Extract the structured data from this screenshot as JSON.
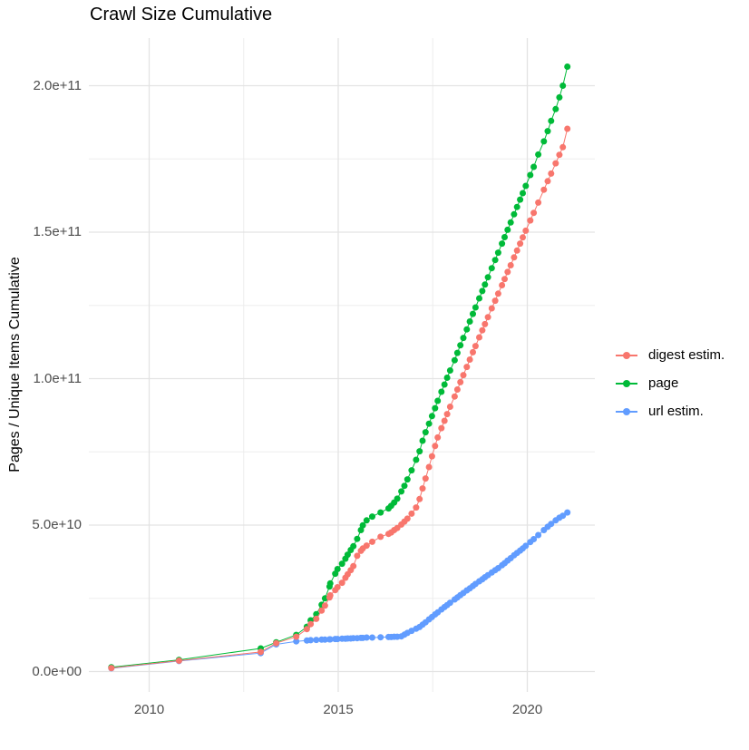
{
  "title": "Crawl Size Cumulative",
  "axes": {
    "y_title": "Pages / Unique Items Cumulative",
    "x_ticks": [
      {
        "label": "2010",
        "value": 2010
      },
      {
        "label": "2015",
        "value": 2015
      },
      {
        "label": "2020",
        "value": 2020
      }
    ],
    "y_ticks": [
      {
        "label": "0.0e+00",
        "value_e9": 0
      },
      {
        "label": "5.0e+10",
        "value_e9": 50
      },
      {
        "label": "1.0e+11",
        "value_e9": 100
      },
      {
        "label": "1.5e+11",
        "value_e9": 150
      },
      {
        "label": "2.0e+11",
        "value_e9": 200
      }
    ],
    "x_minor": [
      2012.5,
      2017.5
    ],
    "y_minor_e9": [
      25,
      75,
      125,
      175
    ]
  },
  "legend": [
    {
      "label": "digest estim.",
      "color": "#F8766D"
    },
    {
      "label": "page",
      "color": "#00BA38"
    },
    {
      "label": "url estim.",
      "color": "#619CFF"
    }
  ],
  "colors": {
    "digest": "#F8766D",
    "page": "#00BA38",
    "url": "#619CFF",
    "grid_major": "#e3e3e3",
    "grid_minor": "#ededed",
    "tick_text": "#4d4d4d",
    "title_text": "#000000"
  },
  "chart_data": {
    "type": "line",
    "marker": "point",
    "title": "Crawl Size Cumulative",
    "xlabel": "",
    "ylabel": "Pages / Unique Items Cumulative",
    "x_unit": "year",
    "value_unit": "items, stored as billions (1e9)",
    "xlim": [
      2008.35,
      2021.75
    ],
    "ylim_e9": [
      -9,
      214
    ],
    "grid": true,
    "legend_position": "right",
    "draw_order": [
      "page",
      "url estim.",
      "digest estim."
    ],
    "series": [
      {
        "name": "digest estim.",
        "color": "#F8766D",
        "points": [
          [
            2009.0,
            1.2
          ],
          [
            2010.79,
            3.7
          ],
          [
            2012.95,
            6.7
          ],
          [
            2013.36,
            9.7
          ],
          [
            2013.89,
            11.9
          ],
          [
            2014.17,
            14.5
          ],
          [
            2014.27,
            16.2
          ],
          [
            2014.42,
            18.0
          ],
          [
            2014.56,
            20.8
          ],
          [
            2014.65,
            22.5
          ],
          [
            2014.77,
            25.3
          ],
          [
            2014.79,
            26.0
          ],
          [
            2014.92,
            27.8
          ],
          [
            2014.98,
            28.8
          ],
          [
            2015.1,
            30.3
          ],
          [
            2015.19,
            32.0
          ],
          [
            2015.25,
            33.2
          ],
          [
            2015.33,
            34.6
          ],
          [
            2015.4,
            36.0
          ],
          [
            2015.5,
            39.5
          ],
          [
            2015.6,
            41.2
          ],
          [
            2015.65,
            42.0
          ],
          [
            2015.75,
            43.0
          ],
          [
            2015.9,
            44.3
          ],
          [
            2016.12,
            46.0
          ],
          [
            2016.33,
            47.0
          ],
          [
            2016.4,
            47.5
          ],
          [
            2016.48,
            48.3
          ],
          [
            2016.56,
            49.0
          ],
          [
            2016.67,
            50.2
          ],
          [
            2016.75,
            51.2
          ],
          [
            2016.83,
            52.2
          ],
          [
            2016.94,
            53.9
          ],
          [
            2017.06,
            56.0
          ],
          [
            2017.15,
            58.9
          ],
          [
            2017.23,
            62.5
          ],
          [
            2017.31,
            65.9
          ],
          [
            2017.4,
            69.8
          ],
          [
            2017.48,
            73.5
          ],
          [
            2017.56,
            77.0
          ],
          [
            2017.63,
            79.9
          ],
          [
            2017.73,
            83.1
          ],
          [
            2017.81,
            85.6
          ],
          [
            2017.88,
            87.9
          ],
          [
            2017.96,
            90.4
          ],
          [
            2018.08,
            93.9
          ],
          [
            2018.15,
            96.3
          ],
          [
            2018.23,
            98.8
          ],
          [
            2018.31,
            101.2
          ],
          [
            2018.4,
            104.0
          ],
          [
            2018.48,
            106.5
          ],
          [
            2018.56,
            109.0
          ],
          [
            2018.63,
            111.1
          ],
          [
            2018.73,
            114.1
          ],
          [
            2018.81,
            116.5
          ],
          [
            2018.88,
            118.6
          ],
          [
            2018.96,
            121.0
          ],
          [
            2019.06,
            124.0
          ],
          [
            2019.15,
            126.6
          ],
          [
            2019.23,
            129.0
          ],
          [
            2019.33,
            131.9
          ],
          [
            2019.4,
            134.0
          ],
          [
            2019.48,
            136.4
          ],
          [
            2019.56,
            138.7
          ],
          [
            2019.65,
            141.4
          ],
          [
            2019.73,
            143.7
          ],
          [
            2019.81,
            146.1
          ],
          [
            2019.88,
            148.2
          ],
          [
            2019.96,
            150.5
          ],
          [
            2020.08,
            154.0
          ],
          [
            2020.17,
            156.6
          ],
          [
            2020.29,
            160.1
          ],
          [
            2020.44,
            164.5
          ],
          [
            2020.54,
            167.4
          ],
          [
            2020.63,
            170.0
          ],
          [
            2020.75,
            173.5
          ],
          [
            2020.85,
            176.4
          ],
          [
            2020.94,
            179.0
          ],
          [
            2021.06,
            185.3
          ]
        ]
      },
      {
        "name": "page",
        "color": "#00BA38",
        "points": [
          [
            2009.0,
            1.5
          ],
          [
            2010.79,
            4.0
          ],
          [
            2012.95,
            7.9
          ],
          [
            2013.36,
            10.0
          ],
          [
            2013.89,
            12.5
          ],
          [
            2014.17,
            15.3
          ],
          [
            2014.27,
            17.5
          ],
          [
            2014.42,
            19.6
          ],
          [
            2014.56,
            22.8
          ],
          [
            2014.65,
            25.0
          ],
          [
            2014.77,
            29.0
          ],
          [
            2014.79,
            30.1
          ],
          [
            2014.92,
            33.4
          ],
          [
            2014.98,
            35.0
          ],
          [
            2015.1,
            36.8
          ],
          [
            2015.19,
            38.5
          ],
          [
            2015.25,
            39.9
          ],
          [
            2015.33,
            41.5
          ],
          [
            2015.4,
            42.8
          ],
          [
            2015.5,
            45.3
          ],
          [
            2015.6,
            48.3
          ],
          [
            2015.65,
            49.9
          ],
          [
            2015.75,
            51.6
          ],
          [
            2015.9,
            52.9
          ],
          [
            2016.12,
            54.3
          ],
          [
            2016.33,
            55.7
          ],
          [
            2016.4,
            56.6
          ],
          [
            2016.48,
            57.7
          ],
          [
            2016.56,
            59.0
          ],
          [
            2016.67,
            61.5
          ],
          [
            2016.75,
            63.4
          ],
          [
            2016.83,
            65.6
          ],
          [
            2016.94,
            68.7
          ],
          [
            2017.06,
            72.3
          ],
          [
            2017.15,
            75.2
          ],
          [
            2017.23,
            78.8
          ],
          [
            2017.31,
            81.7
          ],
          [
            2017.4,
            84.6
          ],
          [
            2017.48,
            87.2
          ],
          [
            2017.56,
            89.9
          ],
          [
            2017.63,
            92.4
          ],
          [
            2017.73,
            95.5
          ],
          [
            2017.81,
            98.0
          ],
          [
            2017.88,
            100.3
          ],
          [
            2017.96,
            102.8
          ],
          [
            2018.08,
            106.3
          ],
          [
            2018.15,
            108.8
          ],
          [
            2018.23,
            111.4
          ],
          [
            2018.31,
            113.9
          ],
          [
            2018.4,
            116.8
          ],
          [
            2018.48,
            119.5
          ],
          [
            2018.56,
            122.1
          ],
          [
            2018.63,
            124.3
          ],
          [
            2018.73,
            127.4
          ],
          [
            2018.81,
            129.9
          ],
          [
            2018.88,
            132.1
          ],
          [
            2018.96,
            134.6
          ],
          [
            2019.06,
            137.7
          ],
          [
            2019.15,
            140.5
          ],
          [
            2019.23,
            143.0
          ],
          [
            2019.33,
            146.1
          ],
          [
            2019.4,
            148.3
          ],
          [
            2019.48,
            150.8
          ],
          [
            2019.56,
            153.3
          ],
          [
            2019.65,
            156.1
          ],
          [
            2019.73,
            158.6
          ],
          [
            2019.81,
            161.1
          ],
          [
            2019.88,
            163.3
          ],
          [
            2019.96,
            165.8
          ],
          [
            2020.08,
            169.5
          ],
          [
            2020.17,
            172.3
          ],
          [
            2020.29,
            176.5
          ],
          [
            2020.44,
            181.0
          ],
          [
            2020.54,
            184.5
          ],
          [
            2020.63,
            188.0
          ],
          [
            2020.75,
            192.0
          ],
          [
            2020.85,
            196.0
          ],
          [
            2020.94,
            200.0
          ],
          [
            2021.06,
            206.5
          ]
        ]
      },
      {
        "name": "url estim.",
        "color": "#619CFF",
        "points": [
          [
            2009.0,
            1.1
          ],
          [
            2010.79,
            3.6
          ],
          [
            2012.95,
            6.3
          ],
          [
            2013.36,
            9.3
          ],
          [
            2013.89,
            10.3
          ],
          [
            2014.17,
            10.6
          ],
          [
            2014.27,
            10.7
          ],
          [
            2014.42,
            10.8
          ],
          [
            2014.56,
            10.9
          ],
          [
            2014.65,
            10.9
          ],
          [
            2014.77,
            11.0
          ],
          [
            2014.79,
            11.0
          ],
          [
            2014.92,
            11.1
          ],
          [
            2014.98,
            11.1
          ],
          [
            2015.1,
            11.2
          ],
          [
            2015.19,
            11.2
          ],
          [
            2015.25,
            11.3
          ],
          [
            2015.33,
            11.3
          ],
          [
            2015.4,
            11.4
          ],
          [
            2015.5,
            11.4
          ],
          [
            2015.6,
            11.5
          ],
          [
            2015.65,
            11.5
          ],
          [
            2015.75,
            11.6
          ],
          [
            2015.9,
            11.6
          ],
          [
            2016.12,
            11.7
          ],
          [
            2016.33,
            11.8
          ],
          [
            2016.4,
            11.8
          ],
          [
            2016.48,
            11.9
          ],
          [
            2016.56,
            11.9
          ],
          [
            2016.67,
            12.0
          ],
          [
            2016.75,
            12.6
          ],
          [
            2016.83,
            13.2
          ],
          [
            2016.94,
            13.9
          ],
          [
            2017.06,
            14.6
          ],
          [
            2017.15,
            15.2
          ],
          [
            2017.23,
            16.0
          ],
          [
            2017.31,
            16.8
          ],
          [
            2017.4,
            17.8
          ],
          [
            2017.48,
            18.6
          ],
          [
            2017.56,
            19.5
          ],
          [
            2017.63,
            20.2
          ],
          [
            2017.73,
            21.2
          ],
          [
            2017.81,
            22.0
          ],
          [
            2017.88,
            22.7
          ],
          [
            2017.96,
            23.5
          ],
          [
            2018.08,
            24.6
          ],
          [
            2018.15,
            25.3
          ],
          [
            2018.23,
            26.1
          ],
          [
            2018.31,
            26.8
          ],
          [
            2018.4,
            27.7
          ],
          [
            2018.48,
            28.4
          ],
          [
            2018.56,
            29.2
          ],
          [
            2018.63,
            29.9
          ],
          [
            2018.73,
            30.8
          ],
          [
            2018.81,
            31.5
          ],
          [
            2018.88,
            32.2
          ],
          [
            2018.96,
            32.9
          ],
          [
            2019.06,
            33.8
          ],
          [
            2019.15,
            34.6
          ],
          [
            2019.23,
            35.3
          ],
          [
            2019.33,
            36.3
          ],
          [
            2019.4,
            37.0
          ],
          [
            2019.48,
            37.9
          ],
          [
            2019.56,
            38.7
          ],
          [
            2019.65,
            39.7
          ],
          [
            2019.73,
            40.5
          ],
          [
            2019.81,
            41.3
          ],
          [
            2019.88,
            42.0
          ],
          [
            2019.96,
            42.9
          ],
          [
            2020.08,
            44.2
          ],
          [
            2020.17,
            45.2
          ],
          [
            2020.29,
            46.6
          ],
          [
            2020.44,
            48.3
          ],
          [
            2020.54,
            49.4
          ],
          [
            2020.63,
            50.4
          ],
          [
            2020.75,
            51.6
          ],
          [
            2020.85,
            52.5
          ],
          [
            2020.94,
            53.2
          ],
          [
            2021.06,
            54.3
          ]
        ]
      }
    ]
  }
}
